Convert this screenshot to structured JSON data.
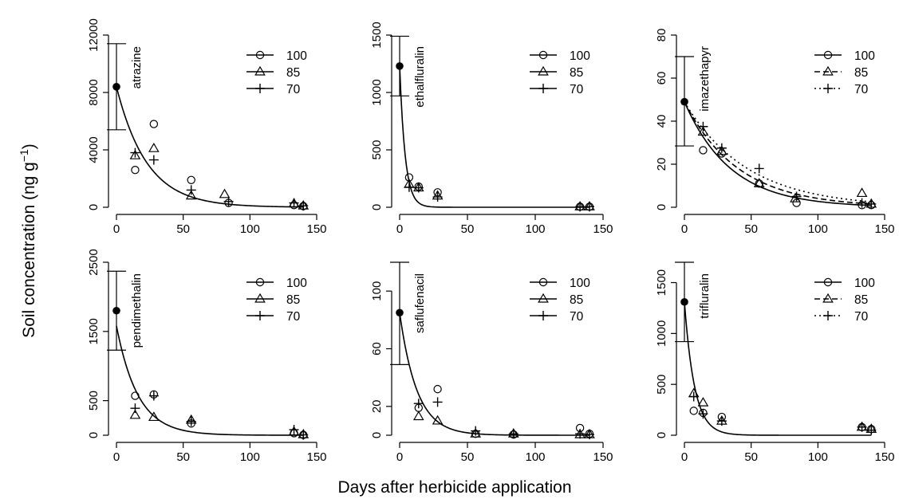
{
  "figure": {
    "ylabel_main": "Soil concentration",
    "ylabel_unit_open": "(ng g",
    "ylabel_unit_exp": "−1",
    "ylabel_unit_close": ")",
    "xlabel": "Days after herbicide application"
  },
  "chart_data": [
    {
      "type": "scatter",
      "ylabel": "atrazine",
      "xlim": [
        0,
        150
      ],
      "ylim": [
        0,
        12000
      ],
      "xticks": [
        0,
        50,
        100,
        150
      ],
      "yticks": [
        0,
        4000,
        8000,
        12000
      ],
      "legend": [
        "100",
        "85",
        "70"
      ],
      "legend_lines": [
        "solid",
        "solid",
        "solid"
      ],
      "legend_placement": "top-right",
      "initial": {
        "x": 0,
        "y": 8400,
        "low": 5400,
        "high": 11400
      },
      "series": [
        {
          "name": "100",
          "marker": "circle",
          "x": [
            14,
            28,
            56,
            84,
            133,
            140
          ],
          "y": [
            2600,
            5800,
            1900,
            300,
            150,
            80
          ]
        },
        {
          "name": "85",
          "marker": "triangle",
          "x": [
            14,
            28,
            56,
            81,
            133,
            140
          ],
          "y": [
            3600,
            4100,
            800,
            900,
            250,
            100
          ]
        },
        {
          "name": "70",
          "marker": "plus",
          "x": [
            14,
            28,
            56,
            84,
            133,
            140
          ],
          "y": [
            3800,
            3300,
            1200,
            400,
            300,
            100
          ]
        }
      ],
      "curves": [
        {
          "style": "solid",
          "c0": 8400,
          "k": 0.0437
        }
      ]
    },
    {
      "type": "scatter",
      "ylabel": "ethalfluralin",
      "xlim": [
        0,
        150
      ],
      "ylim": [
        0,
        1500
      ],
      "xticks": [
        0,
        50,
        100,
        150
      ],
      "yticks": [
        0,
        500,
        1000,
        1500
      ],
      "legend": [
        "100",
        "85",
        "70"
      ],
      "legend_lines": [
        "solid",
        "solid",
        "solid"
      ],
      "legend_placement": "top-right",
      "initial": {
        "x": 0,
        "y": 1230,
        "low": 970,
        "high": 1490
      },
      "series": [
        {
          "name": "100",
          "marker": "circle",
          "x": [
            7,
            14,
            28,
            133,
            140
          ],
          "y": [
            260,
            180,
            130,
            5,
            5
          ]
        },
        {
          "name": "85",
          "marker": "triangle",
          "x": [
            7,
            14,
            28,
            133,
            140
          ],
          "y": [
            200,
            170,
            100,
            5,
            5
          ]
        },
        {
          "name": "70",
          "marker": "plus",
          "x": [
            7,
            14,
            28,
            133,
            140
          ],
          "y": [
            175,
            170,
            90,
            5,
            5
          ]
        }
      ],
      "curves": [
        {
          "style": "solid",
          "c0": 1230,
          "k": 0.245
        }
      ]
    },
    {
      "type": "scatter",
      "ylabel": "imazethapyr",
      "xlim": [
        0,
        150
      ],
      "ylim": [
        0,
        80
      ],
      "xticks": [
        0,
        50,
        100,
        150
      ],
      "yticks": [
        0,
        20,
        40,
        60,
        80
      ],
      "legend": [
        "100",
        "85",
        "70"
      ],
      "legend_lines": [
        "solid",
        "dashed",
        "dotted"
      ],
      "legend_placement": "top-right",
      "initial": {
        "x": 0,
        "y": 49,
        "low": 28.5,
        "high": 70
      },
      "series": [
        {
          "name": "100",
          "marker": "circle",
          "x": [
            14,
            28,
            56,
            84,
            133,
            140
          ],
          "y": [
            26.5,
            25,
            11,
            2,
            1,
            1
          ]
        },
        {
          "name": "85",
          "marker": "triangle",
          "x": [
            14,
            28,
            56,
            83,
            133,
            140
          ],
          "y": [
            35,
            26,
            11,
            4,
            6.5,
            1.5
          ]
        },
        {
          "name": "70",
          "marker": "plus",
          "x": [
            14,
            28,
            56,
            84,
            133,
            140
          ],
          "y": [
            37.5,
            27.5,
            18,
            5,
            2,
            1.5
          ]
        }
      ],
      "curves": [
        {
          "style": "solid",
          "c0": 49,
          "k": 0.0289
        },
        {
          "style": "dashed",
          "c0": 49,
          "k": 0.0248
        },
        {
          "style": "dotted",
          "c0": 49,
          "k": 0.0212
        }
      ]
    },
    {
      "type": "scatter",
      "ylabel": "pendimethalin",
      "xlim": [
        0,
        150
      ],
      "ylim": [
        0,
        2500
      ],
      "xticks": [
        0,
        50,
        100,
        150
      ],
      "yticks": [
        0,
        500,
        1500,
        2500
      ],
      "legend": [
        "100",
        "85",
        "70"
      ],
      "legend_lines": [
        "solid",
        "solid",
        "solid"
      ],
      "legend_placement": "top-right",
      "initial": {
        "x": 0,
        "y": 1800,
        "low": 1230,
        "high": 2370
      },
      "series": [
        {
          "name": "100",
          "marker": "circle",
          "x": [
            14,
            28,
            56,
            133,
            140
          ],
          "y": [
            570,
            590,
            170,
            30,
            5
          ]
        },
        {
          "name": "85",
          "marker": "triangle",
          "x": [
            14,
            28,
            56,
            133,
            140
          ],
          "y": [
            290,
            260,
            220,
            50,
            10
          ]
        },
        {
          "name": "70",
          "marker": "plus",
          "x": [
            14,
            28,
            56,
            133,
            140
          ],
          "y": [
            390,
            570,
            200,
            80,
            5
          ]
        }
      ],
      "curves": [
        {
          "style": "solid",
          "c0": 1580,
          "k": 0.062
        }
      ]
    },
    {
      "type": "scatter",
      "ylabel": "saflufenacil",
      "xlim": [
        0,
        150
      ],
      "ylim": [
        0,
        120
      ],
      "xticks": [
        0,
        50,
        100,
        150
      ],
      "yticks": [
        0,
        20,
        60,
        100
      ],
      "legend": [
        "100",
        "85",
        "70"
      ],
      "legend_lines": [
        "solid",
        "solid",
        "solid"
      ],
      "legend_placement": "top-right",
      "initial": {
        "x": 0,
        "y": 85,
        "low": 49,
        "high": 120
      },
      "series": [
        {
          "name": "100",
          "marker": "circle",
          "x": [
            14,
            28,
            56,
            84,
            133,
            140
          ],
          "y": [
            19,
            32,
            1,
            0.5,
            5,
            1
          ]
        },
        {
          "name": "85",
          "marker": "triangle",
          "x": [
            14,
            28,
            56,
            84,
            133,
            140
          ],
          "y": [
            13,
            10,
            1,
            1,
            0.5,
            0.5
          ]
        },
        {
          "name": "70",
          "marker": "plus",
          "x": [
            14,
            28,
            56,
            84,
            133,
            140
          ],
          "y": [
            22,
            23,
            3,
            1,
            1,
            0.5
          ]
        }
      ],
      "curves": [
        {
          "style": "solid",
          "c0": 85,
          "k": 0.0785
        }
      ]
    },
    {
      "type": "scatter",
      "ylabel": "trifluralin",
      "xlim": [
        0,
        150
      ],
      "ylim": [
        0,
        1700
      ],
      "xticks": [
        0,
        50,
        100,
        150
      ],
      "yticks": [
        0,
        500,
        1000,
        1500
      ],
      "legend": [
        "100",
        "85",
        "70"
      ],
      "legend_lines": [
        "solid",
        "dashed",
        "dotted"
      ],
      "legend_placement": "top-right",
      "initial": {
        "x": 0,
        "y": 1310,
        "low": 920,
        "high": 1700
      },
      "series": [
        {
          "name": "100",
          "marker": "circle",
          "x": [
            7,
            14,
            28,
            133,
            140
          ],
          "y": [
            240,
            220,
            180,
            80,
            60
          ]
        },
        {
          "name": "85",
          "marker": "triangle",
          "x": [
            7,
            14,
            28,
            133,
            140
          ],
          "y": [
            410,
            320,
            140,
            80,
            60
          ]
        },
        {
          "name": "70",
          "marker": "plus",
          "x": [
            7,
            14,
            28,
            133,
            140
          ],
          "y": [
            380,
            210,
            140,
            80,
            50
          ]
        }
      ],
      "curves": [
        {
          "style": "solid",
          "c0": 1310,
          "k": 0.132
        }
      ]
    }
  ]
}
